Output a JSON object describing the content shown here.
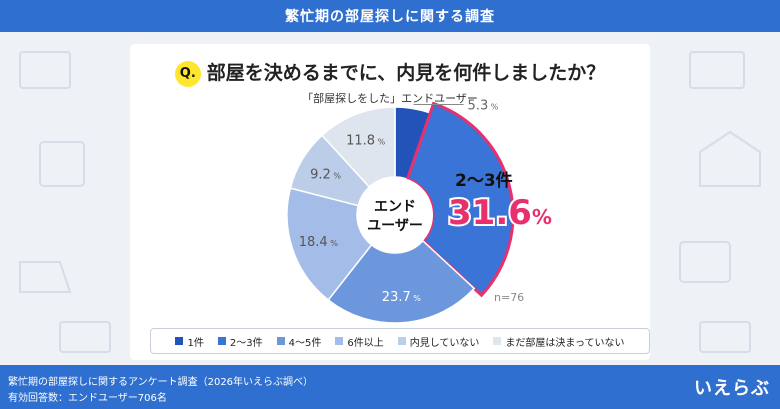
{
  "header": {
    "title": "繁忙期の部屋探しに関する調査"
  },
  "question": {
    "badge": "Q.",
    "text": "部屋を決めるまでに、内見を何件しましたか？"
  },
  "subtitle": "「部屋探しをした」エンドユーザー",
  "center_label": {
    "line1": "エンド",
    "line2": "ユーザー"
  },
  "highlight": {
    "category": "2〜3件",
    "value": "31.6",
    "unit": "%"
  },
  "sample_size": "n=76",
  "footer": {
    "line1": "繁忙期の部屋探しに関するアンケート調査（2026年いえらぶ調べ）",
    "line2": "有効回答数：エンドユーザー706名",
    "logo": "いえらぶ"
  },
  "colors": {
    "header": "#2f6fd0",
    "highlight_border": "#e8306e",
    "badge": "#ffe62e"
  },
  "chart_data": {
    "type": "pie",
    "title": "部屋を決めるまでに、内見を何件しましたか？",
    "categories": [
      "1件",
      "2〜3件",
      "4〜5件",
      "6件以上",
      "内見していない",
      "まだ部屋は決まっていない"
    ],
    "values": [
      5.3,
      31.6,
      23.7,
      18.4,
      9.2,
      11.8
    ],
    "value_labels": [
      "5.3",
      "31.6",
      "23.7",
      "18.4",
      "9.2",
      "11.8"
    ],
    "unit": "%",
    "colors": [
      "#2153b8",
      "#3a74d6",
      "#6c97dd",
      "#a4bde8",
      "#bccde9",
      "#dfe5ee"
    ],
    "legend_position": "bottom",
    "donut": true
  }
}
